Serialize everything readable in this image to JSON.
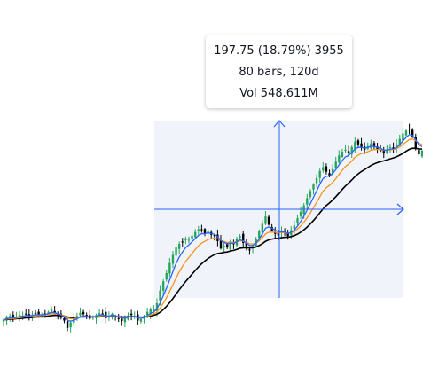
{
  "tooltip": {
    "line1": "197.75 (18.79%) 3955",
    "line2": "80 bars, 120d",
    "line3": "Vol 548.611M"
  },
  "colors": {
    "up": "#26a65b",
    "down": "#000000",
    "ma_fast": "#2962ff",
    "ma_mid": "#f7931a",
    "ma_slow": "#000000",
    "crosshair": "#2962ff",
    "selection": "#f0f3fa"
  },
  "chart_data": {
    "type": "candlestick",
    "title": "",
    "xlabel": "",
    "ylabel": "",
    "grid": false,
    "overlays": [
      "moving-average-fast",
      "moving-average-mid",
      "moving-average-slow"
    ],
    "measure": {
      "change": 197.75,
      "change_pct": 18.79,
      "ticks": 3955,
      "bars": 80,
      "span": "120d",
      "volume": "548.611M"
    },
    "close": [
      47.0,
      49.5,
      51.0,
      49.0,
      50.5,
      52.0,
      51.5,
      53.0,
      50.5,
      52.5,
      54.0,
      52.5,
      51.5,
      53.5,
      55.5,
      58.0,
      54.0,
      51.5,
      49.0,
      46.0,
      38.0,
      44.0,
      48.5,
      51.0,
      54.5,
      53.0,
      50.5,
      48.0,
      50.5,
      52.0,
      54.0,
      53.5,
      48.5,
      50.5,
      53.5,
      50.0,
      48.0,
      45.5,
      49.0,
      51.5,
      52.0,
      50.5,
      46.0,
      47.5,
      51.0,
      55.5,
      59.0,
      58.5,
      65.0,
      79.0,
      89.0,
      98.0,
      109.0,
      118.0,
      126.0,
      130.0,
      132.0,
      136.0,
      134.5,
      139.0,
      143.0,
      146.0,
      145.0,
      141.0,
      144.0,
      140.0,
      138.5,
      133.0,
      125.0,
      128.0,
      126.0,
      133.0,
      130.0,
      136.0,
      138.5,
      131.0,
      126.0,
      123.0,
      128.0,
      136.0,
      144.0,
      152.0,
      160.0,
      151.0,
      144.0,
      141.0,
      139.5,
      144.0,
      142.0,
      138.5,
      145.0,
      150.0,
      158.0,
      165.0,
      172.0,
      180.0,
      188.0,
      195.0,
      202.0,
      210.0,
      214.0,
      209.0,
      205.0,
      212.0,
      220.0,
      227.0,
      231.0,
      233.0,
      230.0,
      236.0,
      242.0,
      239.0,
      236.0,
      233.0,
      237.0,
      240.0,
      236.0,
      234.0,
      232.0,
      229.0,
      233.0,
      236.0,
      234.0,
      239.0,
      245.0,
      251.0,
      254.0,
      256.0,
      247.0,
      234.0,
      228.0,
      232.0
    ]
  }
}
